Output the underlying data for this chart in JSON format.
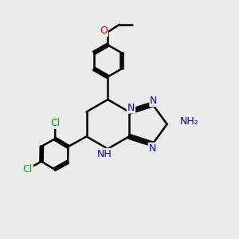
{
  "bg_color": "#ebebeb",
  "bond_color": "#000000",
  "bond_width": 1.8,
  "atom_colors": {
    "N": "#0000cc",
    "O": "#cc0000",
    "Cl": "#00aa00",
    "H": "#888888"
  },
  "figsize": [
    3.0,
    3.0
  ],
  "dpi": 100
}
